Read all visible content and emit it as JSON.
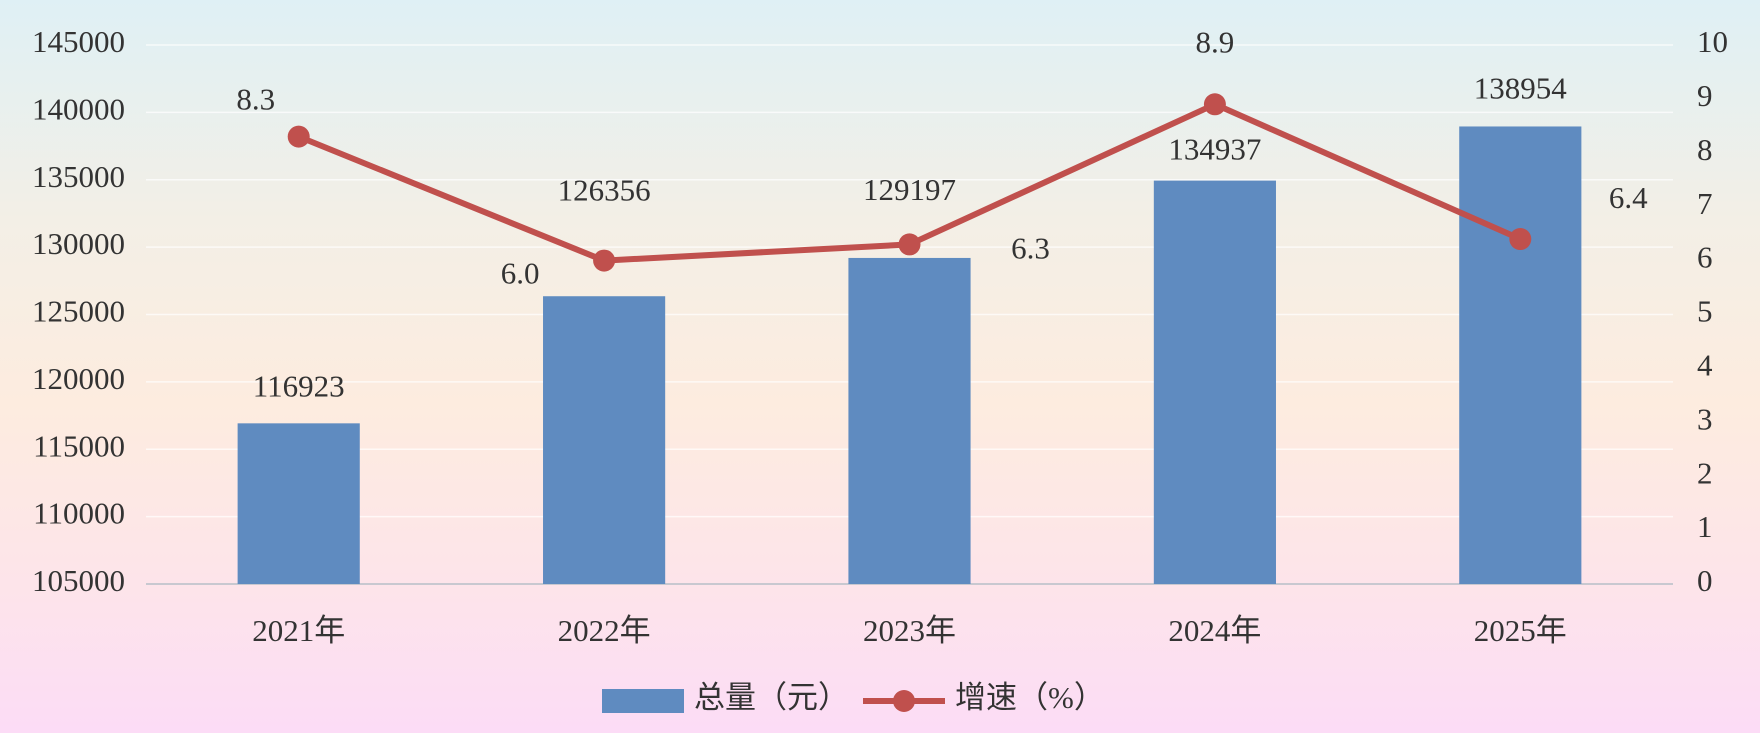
{
  "chart_data": {
    "type": "bar",
    "categories": [
      "2021年",
      "2022年",
      "2023年",
      "2024年",
      "2025年"
    ],
    "series": [
      {
        "name": "总量（元）",
        "type": "bar",
        "color": "#5f8bc0",
        "values": [
          116923,
          126356,
          129197,
          134937,
          138954
        ]
      },
      {
        "name": "增速（%）",
        "type": "line",
        "axis": "y2",
        "color": "#c0504d",
        "values": [
          8.3,
          6.0,
          6.3,
          8.9,
          6.4
        ],
        "value_labels": [
          "8.3",
          "6.0",
          "6.3",
          "8.9",
          "6.4"
        ]
      }
    ],
    "ylim": [
      105000,
      145000
    ],
    "yticks": [
      105000,
      110000,
      115000,
      120000,
      125000,
      130000,
      135000,
      140000,
      145000
    ],
    "y2lim": [
      0,
      10
    ],
    "y2ticks": [
      0,
      1,
      2,
      3,
      4,
      5,
      6,
      7,
      8,
      9,
      10
    ],
    "grid": true,
    "legend": "bottom"
  }
}
